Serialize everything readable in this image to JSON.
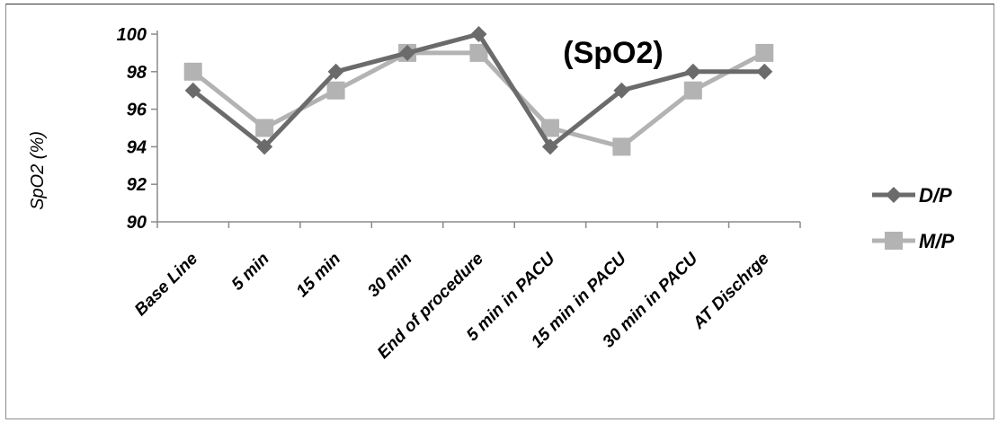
{
  "chart_data": {
    "type": "line",
    "title": "(SpO2)",
    "xlabel": "",
    "ylabel": "SpO2 (%)",
    "ylim": [
      90,
      100
    ],
    "yticks": [
      90,
      92,
      94,
      96,
      98,
      100
    ],
    "categories": [
      "Base Line",
      "5 min",
      "15 min",
      "30 min",
      "End of procedure",
      "5 min in PACU",
      "15 min in PACU",
      "30 min in PACU",
      "AT Dischrge"
    ],
    "series": [
      {
        "name": "D/P",
        "values": [
          97,
          94,
          98,
          99,
          100,
          94,
          97,
          98,
          98
        ],
        "color": "#6b6b6b",
        "marker": "diamond"
      },
      {
        "name": "M/P",
        "values": [
          98,
          95,
          97,
          99,
          99,
          95,
          94,
          97,
          99
        ],
        "color": "#b3b3b3",
        "marker": "square"
      }
    ],
    "grid": false,
    "legend": "right"
  }
}
